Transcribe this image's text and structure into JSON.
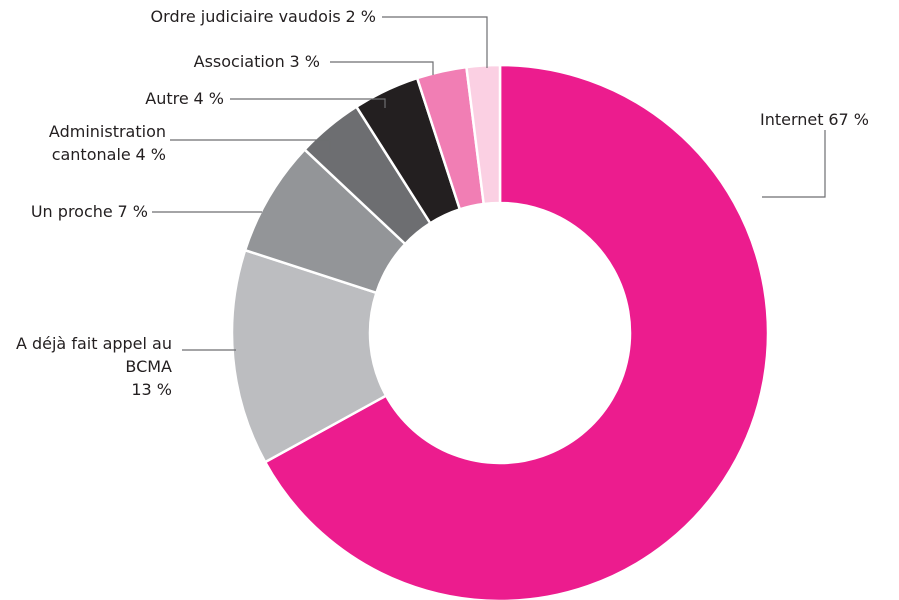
{
  "chart_data": {
    "type": "pie",
    "donut": true,
    "categories": [
      "Internet",
      "A déjà fait appel au BCMA",
      "Un proche",
      "Administration cantonale",
      "Autre",
      "Association",
      "Ordre judiciaire vaudois"
    ],
    "values": [
      67,
      13,
      7,
      4,
      4,
      3,
      2
    ],
    "value_labels": [
      "67 %",
      "13 %",
      "7 %",
      "4 %",
      "4 %",
      "3 %",
      "2 %"
    ],
    "colors": [
      "#ec1c8e",
      "#bcbdc0",
      "#939598",
      "#6d6e71",
      "#231f20",
      "#f17eb4",
      "#fbd0e3"
    ]
  }
}
